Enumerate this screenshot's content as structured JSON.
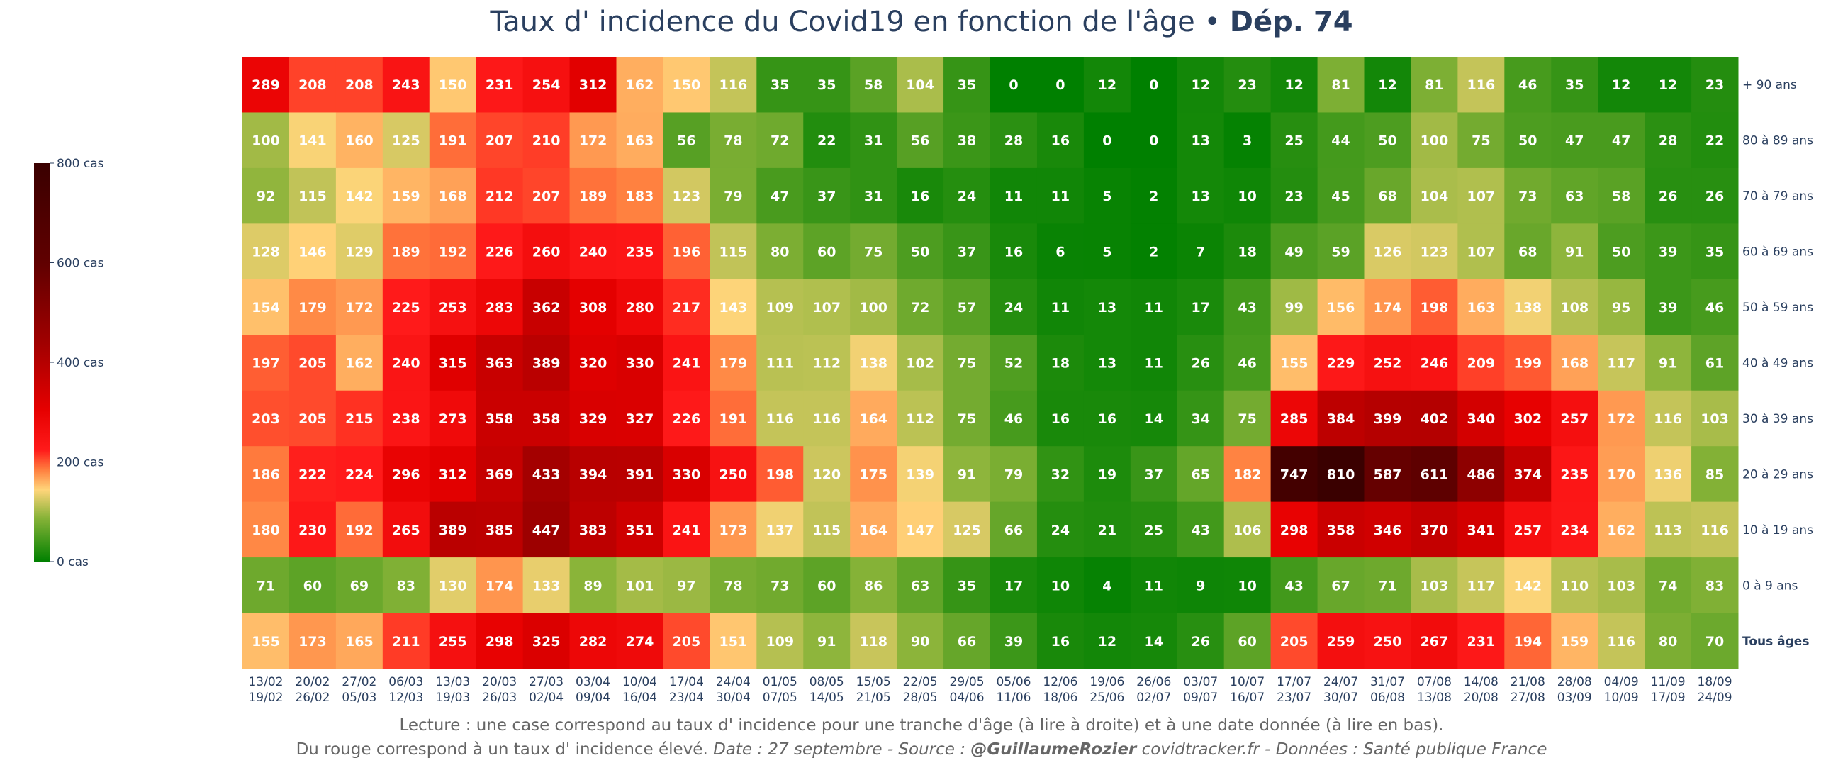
{
  "title": {
    "main": "Taux d' incidence du Covid19 en fonction de l'âge • ",
    "dept": "Dép. 74"
  },
  "caption": {
    "line1": "Lecture : une case correspond au taux d' incidence pour une tranche d'âge (à lire à droite) et à une date donnée (à lire en bas).",
    "line2_a": "Du rouge correspond à un taux d' incidence élevé.  ",
    "date": "Date : 27 septembre - Source : ",
    "author": "@GuillaumeRozier",
    "source": " covidtracker.fr - Données : Santé publique France"
  },
  "colors": {
    "text": "#2a3f5f",
    "scale": [
      "#008000",
      "#88b338",
      "#ffd57a",
      "#ff7f3f",
      "#ff1a1a",
      "#e60000",
      "#a00000",
      "#600000",
      "#3a0000"
    ]
  },
  "chart_data": {
    "type": "heatmap",
    "title": "Taux d' incidence du Covid19 en fonction de l'âge • Dép. 74",
    "xlabel": "",
    "ylabel": "",
    "zmin": 0,
    "zmax": 800,
    "colorbar_ticks": [
      {
        "value": 0,
        "label": "0 cas"
      },
      {
        "value": 200,
        "label": "200 cas"
      },
      {
        "value": 400,
        "label": "400 cas"
      },
      {
        "value": 600,
        "label": "600 cas"
      },
      {
        "value": 800,
        "label": "800 cas"
      }
    ],
    "x": [
      [
        "13/02",
        "19/02"
      ],
      [
        "20/02",
        "26/02"
      ],
      [
        "27/02",
        "05/03"
      ],
      [
        "06/03",
        "12/03"
      ],
      [
        "13/03",
        "19/03"
      ],
      [
        "20/03",
        "26/03"
      ],
      [
        "27/03",
        "02/04"
      ],
      [
        "03/04",
        "09/04"
      ],
      [
        "10/04",
        "16/04"
      ],
      [
        "17/04",
        "23/04"
      ],
      [
        "24/04",
        "30/04"
      ],
      [
        "01/05",
        "07/05"
      ],
      [
        "08/05",
        "14/05"
      ],
      [
        "15/05",
        "21/05"
      ],
      [
        "22/05",
        "28/05"
      ],
      [
        "29/05",
        "04/06"
      ],
      [
        "05/06",
        "11/06"
      ],
      [
        "12/06",
        "18/06"
      ],
      [
        "19/06",
        "25/06"
      ],
      [
        "26/06",
        "02/07"
      ],
      [
        "03/07",
        "09/07"
      ],
      [
        "10/07",
        "16/07"
      ],
      [
        "17/07",
        "23/07"
      ],
      [
        "24/07",
        "30/07"
      ],
      [
        "31/07",
        "06/08"
      ],
      [
        "07/08",
        "13/08"
      ],
      [
        "14/08",
        "20/08"
      ],
      [
        "21/08",
        "27/08"
      ],
      [
        "28/08",
        "03/09"
      ],
      [
        "04/09",
        "10/09"
      ],
      [
        "11/09",
        "17/09"
      ],
      [
        "18/09",
        "24/09"
      ]
    ],
    "rows": [
      {
        "label": "+ 90 ans",
        "bold": false,
        "values": [
          289,
          208,
          208,
          243,
          150,
          231,
          254,
          312,
          162,
          150,
          116,
          35,
          35,
          58,
          104,
          35,
          0,
          0,
          12,
          0,
          12,
          23,
          12,
          81,
          12,
          81,
          116,
          46,
          35,
          12,
          12,
          23
        ]
      },
      {
        "label": "80 à 89 ans",
        "bold": false,
        "values": [
          100,
          141,
          160,
          125,
          191,
          207,
          210,
          172,
          163,
          56,
          78,
          72,
          22,
          31,
          56,
          38,
          28,
          16,
          0,
          0,
          13,
          3,
          25,
          44,
          50,
          100,
          75,
          50,
          47,
          47,
          28,
          22
        ]
      },
      {
        "label": "70 à 79 ans",
        "bold": false,
        "values": [
          92,
          115,
          142,
          159,
          168,
          212,
          207,
          189,
          183,
          123,
          79,
          47,
          37,
          31,
          16,
          24,
          11,
          11,
          5,
          2,
          13,
          10,
          23,
          45,
          68,
          104,
          107,
          73,
          63,
          58,
          26,
          26
        ]
      },
      {
        "label": "60 à 69 ans",
        "bold": false,
        "values": [
          128,
          146,
          129,
          189,
          192,
          226,
          260,
          240,
          235,
          196,
          115,
          80,
          60,
          75,
          50,
          37,
          16,
          6,
          5,
          2,
          7,
          18,
          49,
          59,
          126,
          123,
          107,
          68,
          91,
          50,
          39,
          35
        ]
      },
      {
        "label": "50 à 59 ans",
        "bold": false,
        "values": [
          154,
          179,
          172,
          225,
          253,
          283,
          362,
          308,
          280,
          217,
          143,
          109,
          107,
          100,
          72,
          57,
          24,
          11,
          13,
          11,
          17,
          43,
          99,
          156,
          174,
          198,
          163,
          138,
          108,
          95,
          39,
          46
        ]
      },
      {
        "label": "40 à 49 ans",
        "bold": false,
        "values": [
          197,
          205,
          162,
          240,
          315,
          363,
          389,
          320,
          330,
          241,
          179,
          111,
          112,
          138,
          102,
          75,
          52,
          18,
          13,
          11,
          26,
          46,
          155,
          229,
          252,
          246,
          209,
          199,
          168,
          117,
          91,
          61
        ]
      },
      {
        "label": "30 à 39 ans",
        "bold": false,
        "values": [
          203,
          205,
          215,
          238,
          273,
          358,
          358,
          329,
          327,
          226,
          191,
          116,
          116,
          164,
          112,
          75,
          46,
          16,
          16,
          14,
          34,
          75,
          285,
          384,
          399,
          402,
          340,
          302,
          257,
          172,
          116,
          103
        ]
      },
      {
        "label": "20 à 29 ans",
        "bold": false,
        "values": [
          186,
          222,
          224,
          296,
          312,
          369,
          433,
          394,
          391,
          330,
          250,
          198,
          120,
          175,
          139,
          91,
          79,
          32,
          19,
          37,
          65,
          182,
          747,
          810,
          587,
          611,
          486,
          374,
          235,
          170,
          136,
          85
        ]
      },
      {
        "label": "10 à 19 ans",
        "bold": false,
        "values": [
          180,
          230,
          192,
          265,
          389,
          385,
          447,
          383,
          351,
          241,
          173,
          137,
          115,
          164,
          147,
          125,
          66,
          24,
          21,
          25,
          43,
          106,
          298,
          358,
          346,
          370,
          341,
          257,
          234,
          162,
          113,
          116
        ]
      },
      {
        "label": "0 à 9 ans",
        "bold": false,
        "values": [
          71,
          60,
          69,
          83,
          130,
          174,
          133,
          89,
          101,
          97,
          78,
          73,
          60,
          86,
          63,
          35,
          17,
          10,
          4,
          11,
          9,
          10,
          43,
          67,
          71,
          103,
          117,
          142,
          110,
          103,
          74,
          83
        ]
      },
      {
        "label": "Tous âges",
        "bold": true,
        "values": [
          155,
          173,
          165,
          211,
          255,
          298,
          325,
          282,
          274,
          205,
          151,
          109,
          91,
          118,
          90,
          66,
          39,
          16,
          12,
          14,
          26,
          60,
          205,
          259,
          250,
          267,
          231,
          194,
          159,
          116,
          80,
          70
        ]
      }
    ]
  }
}
